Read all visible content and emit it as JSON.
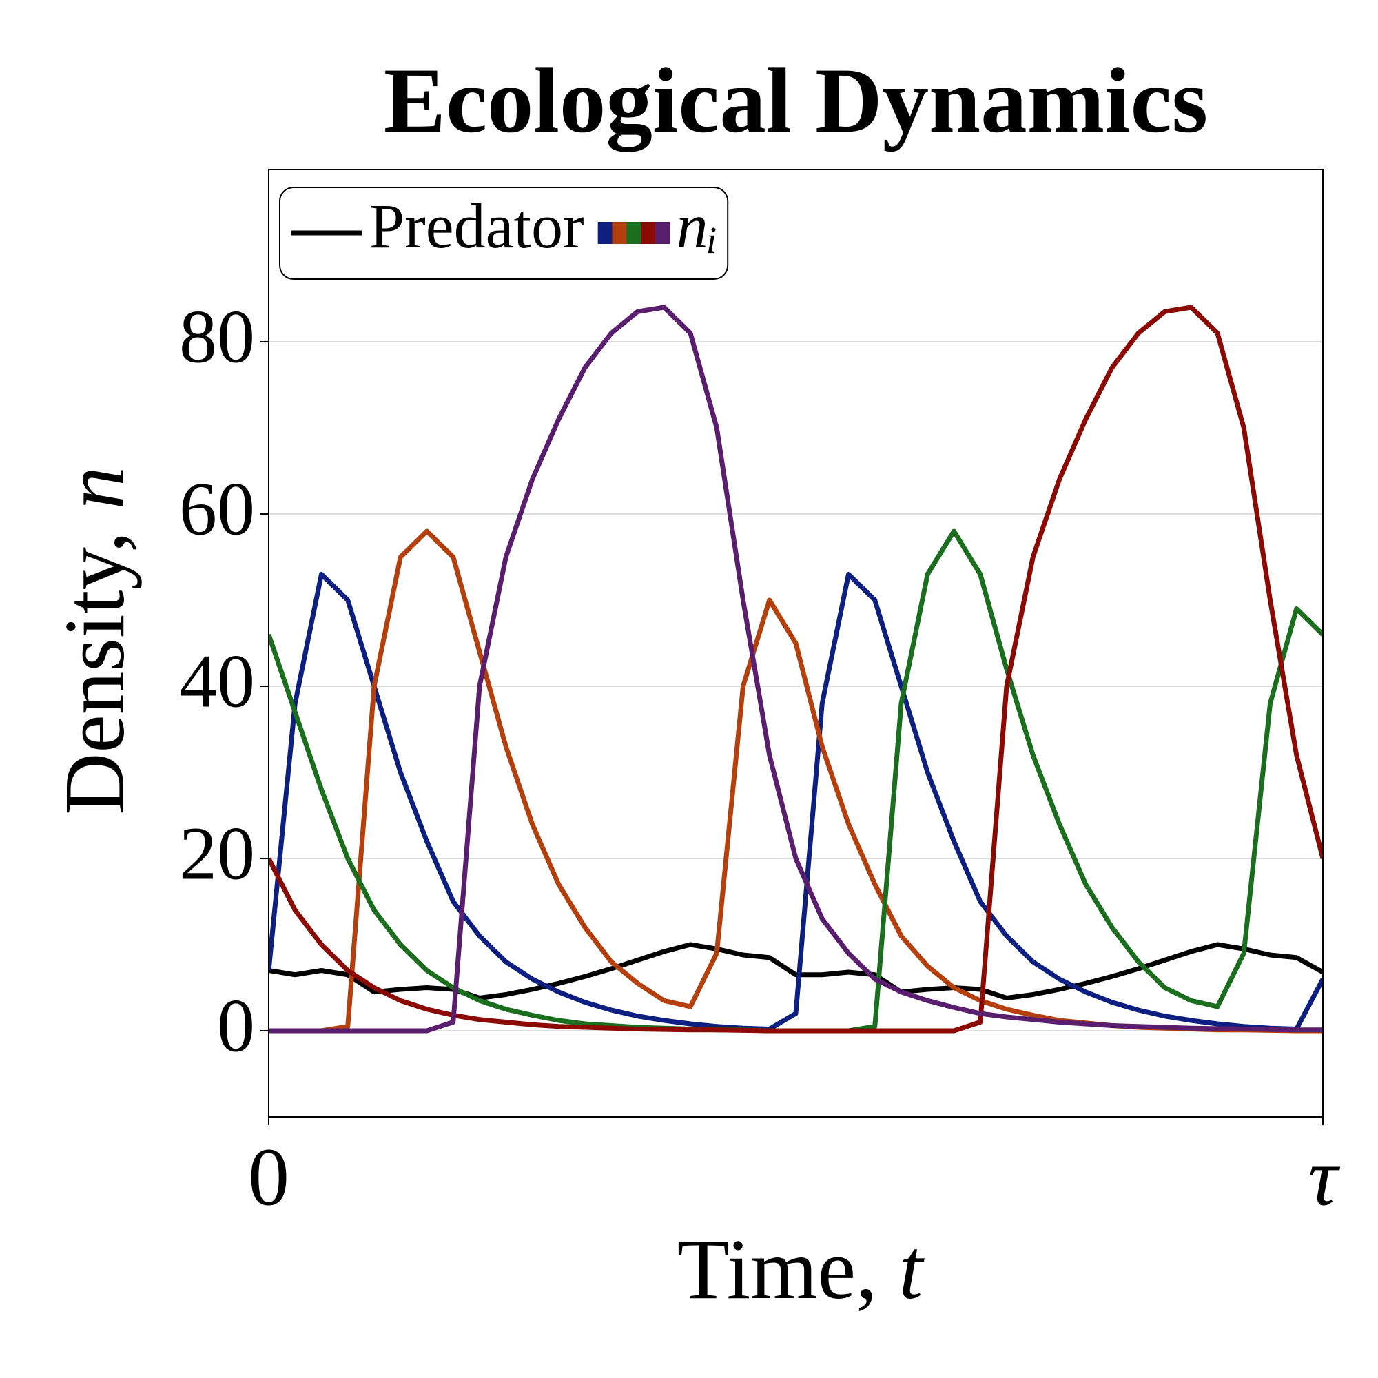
{
  "chart_data": {
    "type": "line",
    "title": "Ecological Dynamics",
    "xlabel": {
      "text": "Time, ",
      "var": "t"
    },
    "ylabel": {
      "text": "Density, ",
      "var": "n"
    },
    "x": [
      0,
      0.025,
      0.05,
      0.075,
      0.1,
      0.125,
      0.15,
      0.175,
      0.2,
      0.225,
      0.25,
      0.275,
      0.3,
      0.325,
      0.35,
      0.375,
      0.4,
      0.425,
      0.45,
      0.475,
      0.5,
      0.525,
      0.55,
      0.575,
      0.6,
      0.625,
      0.65,
      0.675,
      0.7,
      0.725,
      0.75,
      0.775,
      0.8,
      0.825,
      0.85,
      0.875,
      0.9,
      0.925,
      0.95,
      0.975,
      1
    ],
    "xlim": [
      0,
      1
    ],
    "xticks": [
      0,
      {
        "value": 1,
        "label": "τ"
      }
    ],
    "ylim": [
      -10,
      100
    ],
    "yticks": [
      0,
      20,
      40,
      60,
      80
    ],
    "grid": true,
    "legend_position": "upper left",
    "group_label": {
      "var": "n",
      "sub": "ᵢ"
    },
    "series": [
      {
        "name": "Predator",
        "color": "#000000",
        "values": [
          7,
          6.5,
          7,
          6.5,
          4.5,
          4.8,
          5,
          4.8,
          3.8,
          4.2,
          4.8,
          5.5,
          6.3,
          7.2,
          8.2,
          9.2,
          10,
          9.5,
          8.8,
          8.5,
          6.5,
          6.5,
          6.8,
          6.5,
          4.5,
          4.8,
          5,
          4.8,
          3.8,
          4.2,
          4.8,
          5.5,
          6.3,
          7.2,
          8.2,
          9.2,
          10,
          9.5,
          8.8,
          8.5,
          6.8
        ]
      },
      {
        "color": "#0d1f80",
        "values": [
          7,
          38,
          53,
          50,
          40,
          30,
          22,
          15,
          11,
          8,
          6,
          4.5,
          3.3,
          2.4,
          1.7,
          1.2,
          0.8,
          0.5,
          0.3,
          0.2,
          2,
          38,
          53,
          50,
          40,
          30,
          22,
          15,
          11,
          8,
          6,
          4.5,
          3.3,
          2.4,
          1.7,
          1.2,
          0.8,
          0.5,
          0.3,
          0.2,
          6
        ]
      },
      {
        "color": "#b5400e",
        "values": [
          0,
          0,
          0,
          0.5,
          40,
          55,
          58,
          55,
          44,
          33,
          24,
          17,
          12,
          8,
          5.5,
          3.5,
          2.8,
          9,
          40,
          50,
          45,
          33,
          24,
          17,
          11,
          7.5,
          5,
          3.5,
          2.5,
          1.8,
          1.2,
          0.9,
          0.6,
          0.4,
          0.3,
          0.2,
          0.1,
          0.1,
          0.05,
          0,
          0
        ]
      },
      {
        "color": "#1a6e1e",
        "values": [
          46,
          37,
          28,
          20,
          14,
          10,
          7,
          5,
          3.5,
          2.5,
          1.8,
          1.2,
          0.8,
          0.6,
          0.4,
          0.3,
          0.2,
          0.1,
          0.1,
          0,
          0,
          0,
          0,
          0.5,
          38,
          53,
          58,
          53,
          42,
          32,
          24,
          17,
          12,
          8,
          5,
          3.5,
          2.8,
          9,
          38,
          49,
          46
        ]
      },
      {
        "color": "#8b0a04",
        "values": [
          20,
          14,
          10,
          7,
          5,
          3.5,
          2.5,
          1.8,
          1.3,
          1,
          0.7,
          0.5,
          0.4,
          0.3,
          0.2,
          0.15,
          0.1,
          0.1,
          0.05,
          0,
          0,
          0,
          0,
          0,
          0,
          0,
          0,
          1,
          40,
          55,
          64,
          71,
          77,
          81,
          83.5,
          84,
          81,
          70,
          50,
          32,
          20
        ]
      },
      {
        "color": "#5a1e6e",
        "values": [
          0,
          0,
          0,
          0,
          0,
          0,
          0,
          1,
          40,
          55,
          64,
          71,
          77,
          81,
          83.5,
          84,
          81,
          70,
          50,
          32,
          20,
          13,
          9,
          6,
          4.5,
          3.5,
          2.7,
          2,
          1.6,
          1.3,
          1,
          0.8,
          0.6,
          0.5,
          0.4,
          0.3,
          0.25,
          0.2,
          0.15,
          0.1,
          0.1
        ]
      }
    ]
  }
}
